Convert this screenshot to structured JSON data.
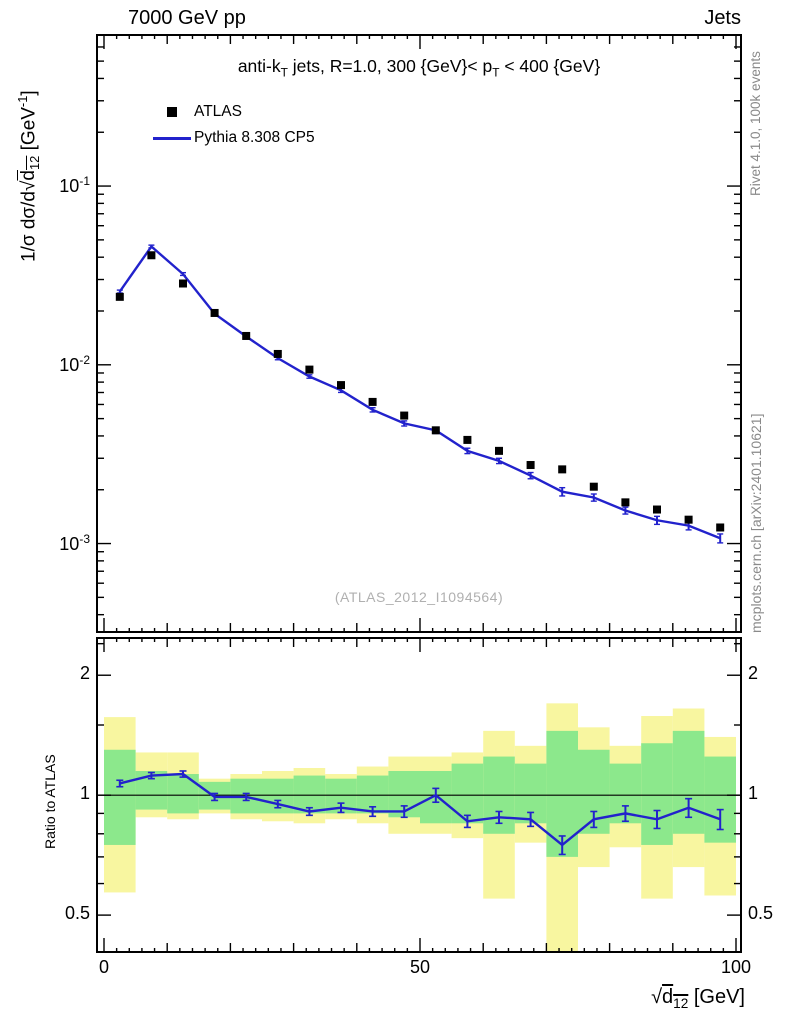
{
  "header": {
    "left": "7000 GeV pp",
    "right": "Jets"
  },
  "title_html": "anti-k<sub>T</sub> jets, R=1.0, 300 {GeV}&lt; p<sub>T</sub> &lt; 400 {GeV}",
  "watermark": "(ATLAS_2012_I1094564)",
  "side_notes": {
    "rivet": "Rivet 4.1.0,  100k events",
    "mcplots": "mcplots.cern.ch [arXiv:2401.10621]"
  },
  "axes": {
    "ylabel_main_html": "1/σ dσ/d√<span class=\"ov\">d<sub>12</sub></span> [GeV<sup>-1</sup>]",
    "ylabel_ratio": "Ratio to ATLAS",
    "xlabel_html": "√<span class=\"ov\">d<sub>12</sub></span> [GeV]"
  },
  "legend": [
    {
      "label": "ATLAS",
      "marker": "square"
    },
    {
      "label": "Pythia 8.308 CP5",
      "marker": "line"
    }
  ],
  "colors": {
    "pythia": "#2222cc",
    "atlas": "#000000",
    "band_outer": "#f8f6a0",
    "band_inner": "#8ce88c",
    "frame": "#000000",
    "watermark": "#b0b0b0",
    "side_note": "#8a8a8a"
  },
  "chart_data": {
    "type": "line",
    "title": "anti-kT jets, R=1.0, 300 {GeV}< pT < 400 {GeV}",
    "xlabel": "sqrt(d12) [GeV]",
    "ylabel_main": "1/sigma dsigma/d sqrt(d12) [GeV^-1]",
    "ylabel_ratio": "Ratio to ATLAS",
    "xlim": [
      0,
      100
    ],
    "ylim_main": [
      0.00032,
      0.7
    ],
    "ylim_ratio": [
      0.404,
      2.48
    ],
    "y_scale": "log",
    "bin_width": 5,
    "x": [
      2.5,
      7.5,
      12.5,
      17.5,
      22.5,
      27.5,
      32.5,
      37.5,
      42.5,
      47.5,
      52.5,
      57.5,
      62.5,
      67.5,
      72.5,
      77.5,
      82.5,
      87.5,
      92.5,
      97.5
    ],
    "series": [
      {
        "name": "ATLAS",
        "type": "markers",
        "values": [
          0.024,
          0.041,
          0.0285,
          0.0195,
          0.0145,
          0.0115,
          0.0094,
          0.0077,
          0.0062,
          0.0052,
          0.0043,
          0.0038,
          0.0033,
          0.00275,
          0.0026,
          0.00208,
          0.0017,
          0.00155,
          0.00136,
          0.00123
        ]
      },
      {
        "name": "Pythia 8.308 CP5",
        "type": "line",
        "values": [
          0.0257,
          0.0459,
          0.0322,
          0.0193,
          0.0144,
          0.0109,
          0.0086,
          0.0072,
          0.0056,
          0.0047,
          0.0043,
          0.0033,
          0.0029,
          0.0024,
          0.00195,
          0.00181,
          0.00153,
          0.00135,
          0.00126,
          0.00107
        ]
      }
    ],
    "ratio": {
      "name": "Pythia/ATLAS",
      "values": [
        1.07,
        1.12,
        1.13,
        0.99,
        0.99,
        0.95,
        0.91,
        0.93,
        0.91,
        0.91,
        1.0,
        0.86,
        0.88,
        0.87,
        0.75,
        0.87,
        0.9,
        0.87,
        0.93,
        0.87
      ],
      "err": [
        0.02,
        0.02,
        0.02,
        0.02,
        0.02,
        0.02,
        0.02,
        0.025,
        0.025,
        0.03,
        0.04,
        0.03,
        0.03,
        0.035,
        0.04,
        0.04,
        0.04,
        0.045,
        0.05,
        0.05
      ],
      "band_outer_lo": [
        0.57,
        0.88,
        0.87,
        0.9,
        0.87,
        0.86,
        0.85,
        0.87,
        0.85,
        0.8,
        0.8,
        0.78,
        0.55,
        0.76,
        0.35,
        0.66,
        0.74,
        0.55,
        0.66,
        0.56
      ],
      "band_outer_hi": [
        1.57,
        1.28,
        1.28,
        1.1,
        1.13,
        1.15,
        1.17,
        1.13,
        1.18,
        1.25,
        1.25,
        1.28,
        1.45,
        1.33,
        1.7,
        1.48,
        1.33,
        1.58,
        1.65,
        1.4
      ],
      "band_inner_lo": [
        0.75,
        0.92,
        0.9,
        0.92,
        0.9,
        0.9,
        0.9,
        0.9,
        0.9,
        0.88,
        0.85,
        0.85,
        0.8,
        0.85,
        0.7,
        0.8,
        0.85,
        0.75,
        0.8,
        0.76
      ],
      "band_inner_hi": [
        1.3,
        1.15,
        1.13,
        1.08,
        1.1,
        1.1,
        1.12,
        1.1,
        1.12,
        1.15,
        1.15,
        1.2,
        1.25,
        1.2,
        1.45,
        1.3,
        1.2,
        1.35,
        1.45,
        1.25
      ]
    },
    "xticks": [
      {
        "v": 0,
        "label": "0"
      },
      {
        "v": 50,
        "label": "50"
      },
      {
        "v": 100,
        "label": "100"
      }
    ],
    "yticks_main": [
      {
        "v": 0.1,
        "exp": "-1"
      },
      {
        "v": 0.01,
        "exp": "-2"
      },
      {
        "v": 0.001,
        "exp": "-3"
      }
    ],
    "yticks_ratio": [
      {
        "v": 2,
        "label": "2"
      },
      {
        "v": 1,
        "label": "1"
      },
      {
        "v": 0.5,
        "label": "0.5"
      }
    ],
    "grid": false,
    "legend_position": "top-left-inside"
  }
}
